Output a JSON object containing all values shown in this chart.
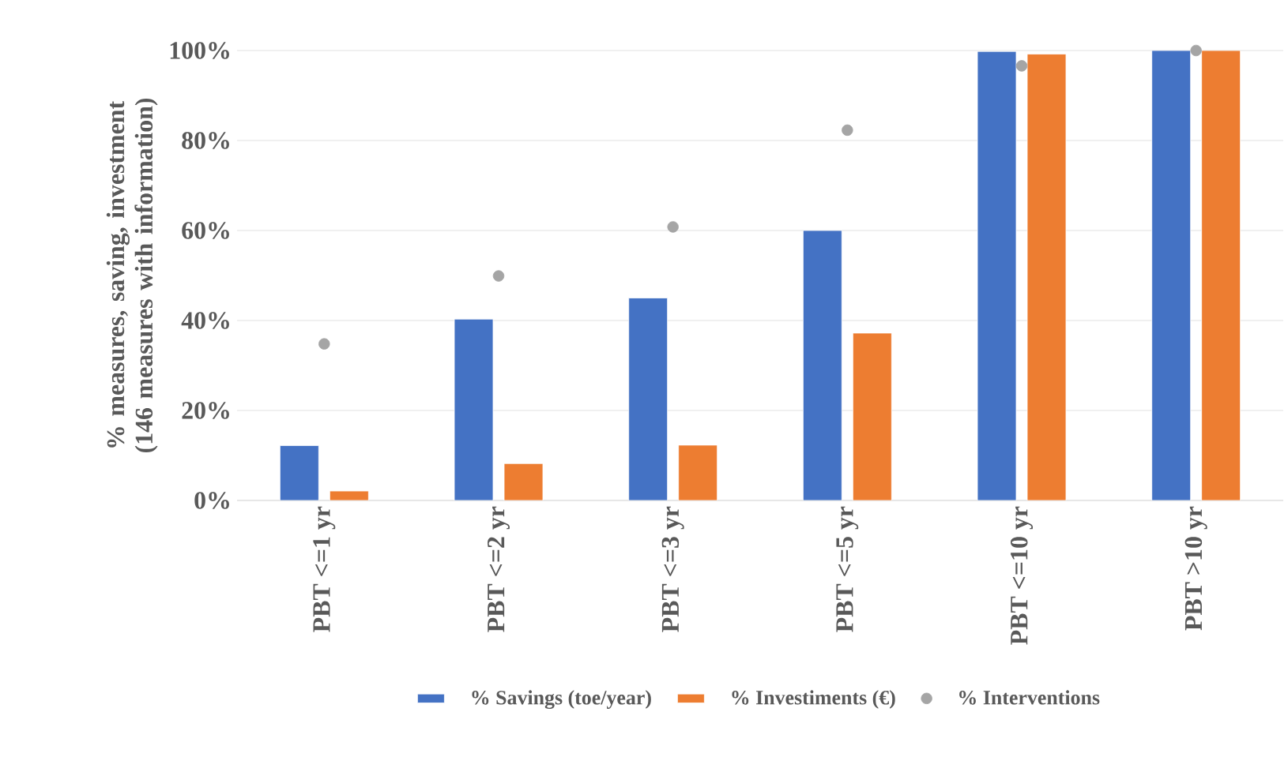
{
  "chart_data": {
    "type": "bar",
    "ylabel": "% measures, saving, investment (146 measures with information)",
    "categories": [
      "PBT <=1  yr",
      "PBT <=2 yr",
      "PBT <=3 yr",
      "PBT <=5 yr",
      "PBT <=10 yr",
      "PBT >10 yr"
    ],
    "series": [
      {
        "name": "% Savings (toe/year)",
        "color": "#4472c4",
        "values": [
          12.2,
          40.3,
          45.0,
          60.0,
          99.8,
          100
        ]
      },
      {
        "name": "% Investiments (€)",
        "color": "#ed7d31",
        "values": [
          2.1,
          8.2,
          12.3,
          37.2,
          99.2,
          100
        ]
      },
      {
        "name": "% Interventions",
        "type": "scatter",
        "color": "#a5a5a5",
        "x": [
          "PBT <=1  yr",
          "PBT <=2 yr",
          "PBT <=3 yr",
          "PBT <=5 yr",
          "PBT <=10 yr",
          "PBT >10 yr"
        ],
        "values": [
          34.8,
          49.9,
          60.8,
          82.3,
          96.6,
          100
        ]
      }
    ],
    "ylim": [
      0,
      100
    ],
    "yticks": [
      {
        "value": 0,
        "label": "0%"
      },
      {
        "value": 20,
        "label": "20%"
      },
      {
        "value": 40,
        "label": "40%"
      },
      {
        "value": 60,
        "label": "60%"
      },
      {
        "value": 80,
        "label": "80%"
      },
      {
        "value": 100,
        "label": "100%"
      }
    ],
    "grid": "y",
    "legend": "bottom"
  }
}
